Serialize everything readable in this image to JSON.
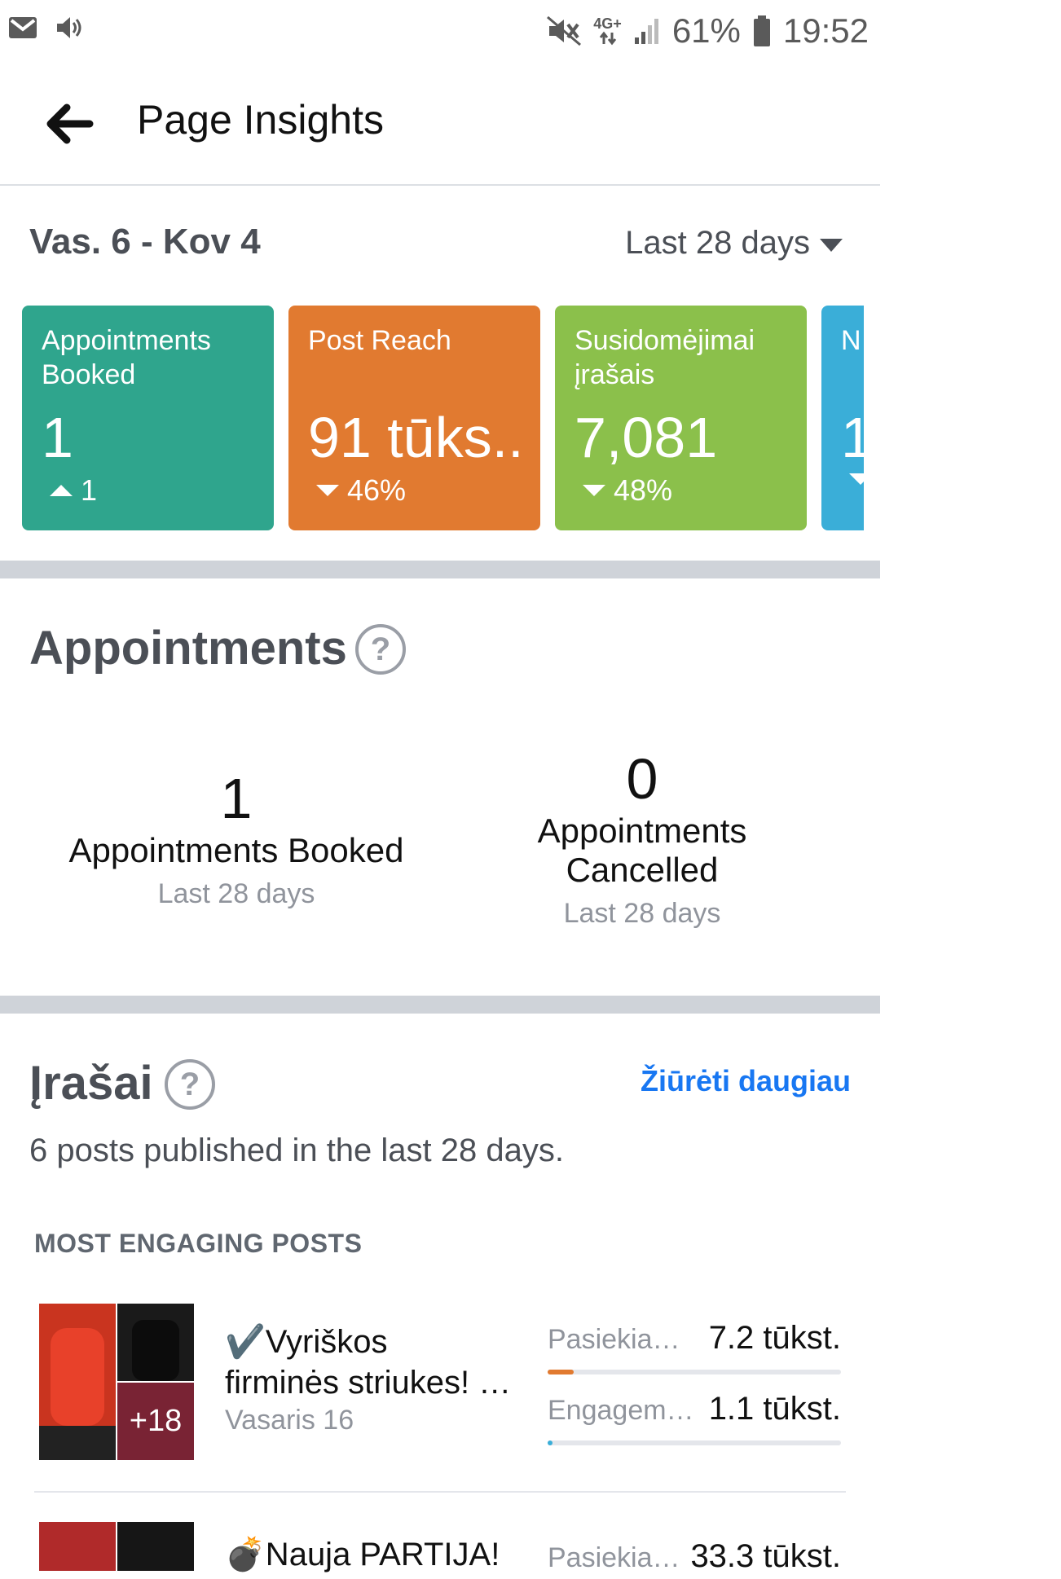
{
  "status_bar": {
    "network": "4G+",
    "battery": "61%",
    "time": "19:52"
  },
  "header": {
    "title": "Page Insights"
  },
  "date_range": "Vas. 6 - Kov 4",
  "period_selector": "Last 28 days",
  "cards": [
    {
      "label": "Appointments Booked",
      "value": "1",
      "delta": "1",
      "direction": "up",
      "color": "#2fa58d"
    },
    {
      "label": "Post Reach",
      "value": "91 tūks..",
      "delta": "46%",
      "direction": "down",
      "color": "#e17a30"
    },
    {
      "label": "Susidomėjimai įrašais",
      "value": "7,081",
      "delta": "48%",
      "direction": "down",
      "color": "#8bc04b"
    },
    {
      "label": "N",
      "value": "1",
      "delta": "",
      "direction": "down",
      "color": "#3aaed8"
    }
  ],
  "appointments": {
    "title": "Appointments",
    "help": "?",
    "booked": {
      "value": "1",
      "label": "Appointments Booked",
      "sub": "Last 28 days"
    },
    "cancelled": {
      "value": "0",
      "label_line1": "Appointments",
      "label_line2": "Cancelled",
      "sub": "Last 28 days"
    }
  },
  "posts": {
    "title": "Įrašai",
    "help": "?",
    "see_more": "Žiūrėti daugiau",
    "summary": "6 posts published in the last 28 days.",
    "section_label": "MOST ENGAGING POSTS",
    "items": [
      {
        "title_line1": "✔️Vyriškos",
        "title_line2": "firminės striukes! …",
        "date": "Vasaris 16",
        "extra_count": "+18",
        "metrics": [
          {
            "label": "Pasiekia…",
            "value": "7.2 tūkst.",
            "fill": 0.09,
            "color": "#e17a30"
          },
          {
            "label": "Engagem…",
            "value": "1.1 tūkst.",
            "fill": 0.015,
            "color": "#3aaed8"
          }
        ]
      },
      {
        "title_line1": "💣Nauja PARTIJA!",
        "metrics": [
          {
            "label": "Pasiekia…",
            "value": "33.3 tūkst."
          }
        ]
      }
    ]
  },
  "colors": {
    "link": "#1877f2",
    "divider": "#cfd3d9"
  }
}
